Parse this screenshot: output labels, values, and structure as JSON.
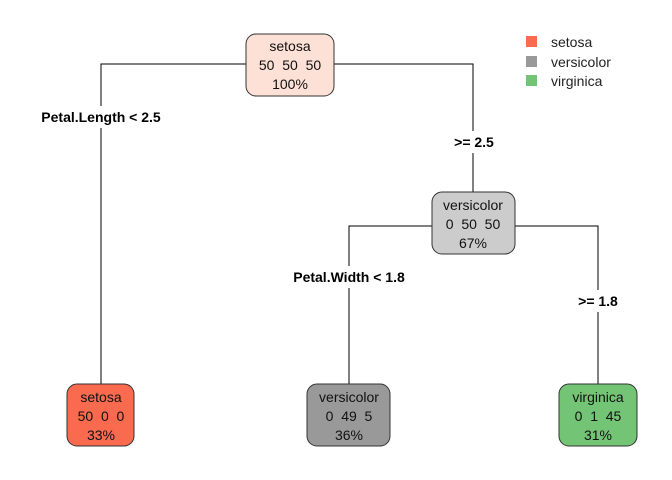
{
  "legend": [
    {
      "label": "setosa",
      "color": "#f96a4f"
    },
    {
      "label": "versicolor",
      "color": "#999999"
    },
    {
      "label": "virginica",
      "color": "#74c476"
    }
  ],
  "nodes": {
    "root": {
      "class": "setosa",
      "counts": "50  50  50",
      "percent": "100%",
      "fill": "#fde0d6"
    },
    "n2": {
      "class": "setosa",
      "counts": "50  0  0",
      "percent": "33%",
      "fill": "#f96a4f"
    },
    "n3": {
      "class": "versicolor",
      "counts": "0  50  50",
      "percent": "67%",
      "fill": "#cccccc"
    },
    "n6": {
      "class": "versicolor",
      "counts": "0  49  5",
      "percent": "36%",
      "fill": "#999999"
    },
    "n7": {
      "class": "virginica",
      "counts": "0  1  45",
      "percent": "31%",
      "fill": "#74c476"
    }
  },
  "splits": {
    "root_left": "Petal.Length < 2.5",
    "root_right": ">= 2.5",
    "n3_left": "Petal.Width < 1.8",
    "n3_right": ">= 1.8"
  }
}
